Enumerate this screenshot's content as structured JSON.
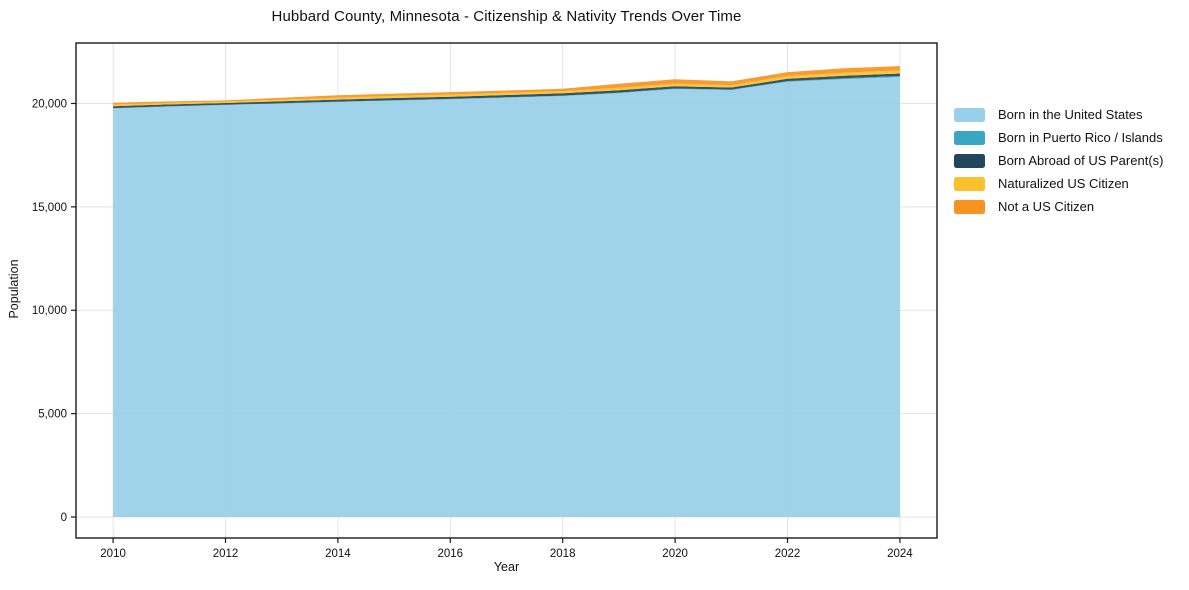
{
  "chart_data": {
    "type": "area",
    "stacked": true,
    "title": "Hubbard County, Minnesota - Citizenship & Nativity Trends Over Time",
    "xlabel": "Year",
    "ylabel": "Population",
    "x": [
      2010,
      2011,
      2012,
      2013,
      2014,
      2015,
      2016,
      2017,
      2018,
      2019,
      2020,
      2021,
      2022,
      2023,
      2024
    ],
    "series": [
      {
        "name": "Born in the United States",
        "color": "#99CFE8",
        "values": [
          19760,
          19850,
          19930,
          20000,
          20070,
          20140,
          20200,
          20280,
          20360,
          20500,
          20700,
          20650,
          21050,
          21180,
          21280
        ]
      },
      {
        "name": "Born in Puerto Rico / Islands",
        "color": "#3BA6C3",
        "values": [
          15,
          15,
          10,
          15,
          20,
          20,
          20,
          20,
          20,
          25,
          25,
          20,
          30,
          40,
          50
        ]
      },
      {
        "name": "Born Abroad of US Parent(s)",
        "color": "#20485A",
        "values": [
          95,
          90,
          85,
          95,
          100,
          105,
          110,
          110,
          115,
          115,
          110,
          105,
          115,
          120,
          120
        ]
      },
      {
        "name": "Naturalized US Citizen",
        "color": "#FBC12D",
        "values": [
          80,
          75,
          70,
          80,
          95,
          100,
          105,
          105,
          105,
          120,
          125,
          115,
          135,
          150,
          150
        ]
      },
      {
        "name": "Not a US Citizen",
        "color": "#F79321",
        "values": [
          90,
          70,
          55,
          90,
          115,
          115,
          115,
          115,
          115,
          190,
          210,
          180,
          190,
          210,
          210
        ]
      }
    ],
    "totals": [
      20040,
      20100,
      20150,
      20280,
      20400,
      20480,
      20550,
      20630,
      20715,
      20950,
      21170,
      21070,
      21520,
      21700,
      21810
    ],
    "x_ticks": [
      2010,
      2012,
      2014,
      2016,
      2018,
      2020,
      2022,
      2024
    ],
    "y_ticks": [
      0,
      5000,
      10000,
      15000,
      20000
    ],
    "y_tick_labels": [
      "0",
      "5,000",
      "10,000",
      "15,000",
      "20,000"
    ],
    "xlim": [
      2009.34,
      2024.66
    ],
    "ylim": [
      -1015,
      22925
    ],
    "grid": true,
    "legend_position": "right-outside"
  },
  "colors": {
    "background": "#ffffff",
    "grid": "#e3e3e3",
    "axis": "#1a1a1a",
    "text": "#111111",
    "fill_opacity": 0.93
  }
}
